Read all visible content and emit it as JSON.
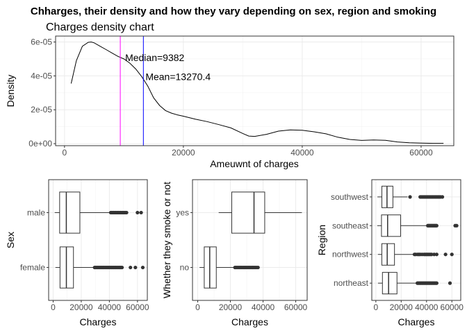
{
  "title": "Chharges, their density and how they vary depending on sex, region and smoking",
  "density": {
    "subtitle": "Charges density chart",
    "xlabel": "Ameuwnt of charges",
    "ylabel": "Density",
    "xlim": [
      -1500,
      65500
    ],
    "ylim": [
      -1.2e-06,
      6.35e-05
    ],
    "xticks": [
      0,
      20000,
      40000,
      60000
    ],
    "xtick_labels": [
      "0",
      "20000",
      "40000",
      "60000"
    ],
    "yticks": [
      0,
      2e-05,
      4e-05,
      6e-05
    ],
    "ytick_labels": [
      "0e+00",
      "2e-05",
      "4e-05",
      "6e-05"
    ],
    "median": {
      "value": 9382,
      "label": "Median=9382",
      "color": "#ff00ff"
    },
    "mean": {
      "value": 13270.4,
      "label": "Mean=13270.4",
      "color": "#0000ff"
    }
  },
  "chart_data": [
    {
      "type": "line",
      "title": "Charges density chart",
      "xlabel": "Ameuwnt of charges",
      "ylabel": "Density",
      "x": [
        1122,
        2000,
        3000,
        4000,
        4500,
        5000,
        6000,
        7000,
        8000,
        9000,
        10000,
        11000,
        12000,
        13000,
        14000,
        15000,
        16000,
        17000,
        18000,
        19000,
        20000,
        22000,
        24000,
        26000,
        28000,
        30000,
        31000,
        32000,
        34000,
        36000,
        38000,
        40000,
        42000,
        44000,
        46000,
        48000,
        50000,
        52000,
        54000,
        56000,
        58000,
        60000,
        62000,
        63770
      ],
      "y": [
        3.55e-05,
        4.9e-05,
        5.75e-05,
        5.98e-05,
        6e-05,
        5.95e-05,
        5.75e-05,
        5.55e-05,
        5.35e-05,
        5.15e-05,
        5e-05,
        4.75e-05,
        4.4e-05,
        3.95e-05,
        3.4e-05,
        2.7e-05,
        2.25e-05,
        1.95e-05,
        1.8e-05,
        1.7e-05,
        1.62e-05,
        1.45e-05,
        1.3e-05,
        1.12e-05,
        9.3e-06,
        6e-06,
        4.5e-06,
        4.3e-06,
        5.5e-06,
        7.4e-06,
        8.1e-06,
        7.9e-06,
        7e-06,
        5.8e-06,
        3.8e-06,
        2.5e-06,
        1.9e-06,
        2.2e-06,
        2e-06,
        1e-06,
        5e-07,
        3e-07,
        2e-07,
        2e-07
      ],
      "vlines": [
        {
          "label": "Median=9382",
          "value": 9382
        },
        {
          "label": "Mean=13270.4",
          "value": 13270.4
        }
      ]
    },
    {
      "type": "box",
      "xlabel": "Charges",
      "ylabel": "Sex",
      "xlim": [
        -3200,
        67000
      ],
      "xticks": [
        0,
        20000,
        40000,
        60000
      ],
      "xtick_labels": [
        "0",
        "20000",
        "40000",
        "60000"
      ],
      "categories": [
        "female",
        "male"
      ],
      "boxes": [
        {
          "category": "female",
          "min": 1608,
          "q1": 4885,
          "median": 9413,
          "q3": 14455,
          "max": 28950,
          "outliers": [
            29500,
            30200,
            31000,
            31800,
            32500,
            33300,
            34000,
            34800,
            35500,
            36200,
            37000,
            37800,
            38500,
            39300,
            40000,
            40800,
            41500,
            42300,
            43000,
            43800,
            44500,
            45200,
            46000,
            46800,
            47500,
            48200,
            49000,
            55000,
            58500,
            63770
          ]
        },
        {
          "category": "male",
          "min": 1122,
          "q1": 4619,
          "median": 9370,
          "q3": 19007,
          "max": 40500,
          "outliers": [
            41000,
            41700,
            42400,
            43100,
            43800,
            44500,
            45200,
            45900,
            46600,
            47300,
            48000,
            48700,
            49400,
            50100,
            50800,
            51500,
            52200,
            60000,
            62600
          ]
        }
      ]
    },
    {
      "type": "box",
      "xlabel": "Charges",
      "ylabel": "Whether they smoke or not",
      "xlim": [
        -3200,
        67000
      ],
      "xticks": [
        0,
        20000,
        40000,
        60000
      ],
      "xtick_labels": [
        "0",
        "20000",
        "40000",
        "60000"
      ],
      "categories": [
        "no",
        "yes"
      ],
      "boxes": [
        {
          "category": "no",
          "min": 1122,
          "q1": 3986,
          "median": 7345,
          "q3": 11363,
          "max": 22400,
          "outliers": [
            22800,
            23500,
            24200,
            25000,
            25700,
            26400,
            27100,
            27900,
            28600,
            29300,
            30000,
            30800,
            31500,
            32200,
            33000,
            33700,
            34400,
            35200,
            36000,
            36900
          ]
        },
        {
          "category": "yes",
          "min": 12829,
          "q1": 20826,
          "median": 34456,
          "q3": 41019,
          "max": 63770,
          "outliers": []
        }
      ]
    },
    {
      "type": "box",
      "xlabel": "Charges",
      "ylabel": "Region",
      "xlim": [
        -3200,
        67000
      ],
      "xticks": [
        0,
        20000,
        40000,
        60000
      ],
      "xtick_labels": [
        "0",
        "20000",
        "40000",
        "60000"
      ],
      "categories": [
        "northeast",
        "northwest",
        "southeast",
        "southwest"
      ],
      "boxes": [
        {
          "category": "northeast",
          "min": 1695,
          "q1": 5194,
          "median": 10058,
          "q3": 16687,
          "max": 32000,
          "outliers": [
            32800,
            33600,
            34400,
            35200,
            36000,
            36800,
            37600,
            38400,
            39200,
            40000,
            40800,
            41600,
            42400,
            43200,
            44000,
            44800,
            45600,
            46400,
            47200,
            48000,
            58500
          ]
        },
        {
          "category": "northwest",
          "min": 1621,
          "q1": 4720,
          "median": 8966,
          "q3": 14712,
          "max": 29500,
          "outliers": [
            30500,
            31500,
            33000,
            34000,
            35000,
            36500,
            38000,
            39000,
            40000,
            41000,
            42000,
            43000,
            44000,
            46000,
            48000,
            55000,
            60000
          ]
        },
        {
          "category": "southeast",
          "min": 1122,
          "q1": 4441,
          "median": 9294,
          "q3": 19526,
          "max": 40000,
          "outliers": [
            41000,
            41700,
            42400,
            43100,
            43800,
            44500,
            45200,
            45900,
            46600,
            47300,
            48000,
            62600,
            63770
          ]
        },
        {
          "category": "southwest",
          "min": 1242,
          "q1": 4751,
          "median": 8799,
          "q3": 13463,
          "max": 25000,
          "outliers": [
            27000,
            35000,
            36000,
            37000,
            38000,
            39000,
            40000,
            41000,
            42000,
            43000,
            44000,
            45000,
            46000,
            47000,
            48000,
            49000,
            50000,
            51000,
            52500
          ]
        }
      ]
    }
  ]
}
